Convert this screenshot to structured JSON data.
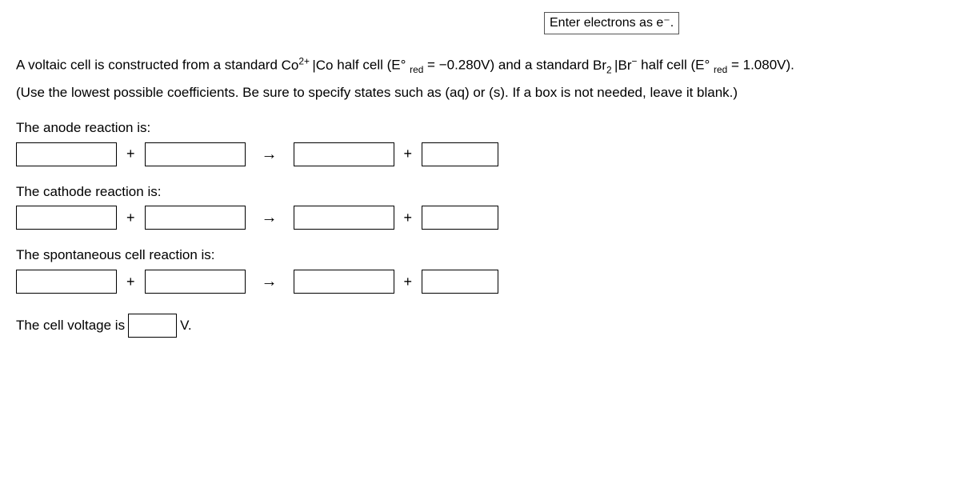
{
  "hint": "Enter electrons as e⁻.",
  "problem": {
    "part1_pre": "A voltaic cell is constructed from a standard ",
    "halfcell1_species_html": "Co<sup>2+</sup> |Co",
    "part1_mid1": " half cell (E° ",
    "red_sub": "red",
    "eq1": " = ",
    "e1": "−0.280V",
    "part1_mid2": ") and a standard ",
    "halfcell2_species_html": "Br<sub>2</sub> |Br<sup>−</sup>",
    "part1_mid3": " half cell (E° ",
    "eq2": " = ",
    "e2": "1.080V",
    "part1_end": ").",
    "instruction": "(Use the lowest possible coefficients. Be sure to specify states such as (aq) or (s). If a box is not needed, leave it blank.)"
  },
  "labels": {
    "anode": "The anode reaction is:",
    "cathode": "The cathode reaction is:",
    "cell": "The spontaneous cell reaction is:",
    "voltage_pre": "The cell voltage is",
    "voltage_unit": "V."
  },
  "symbols": {
    "plus": "+",
    "arrow": "→"
  },
  "style": {
    "box_border": "#000000",
    "background": "#ffffff",
    "text_color": "#000000",
    "font_size_pt": 13
  }
}
